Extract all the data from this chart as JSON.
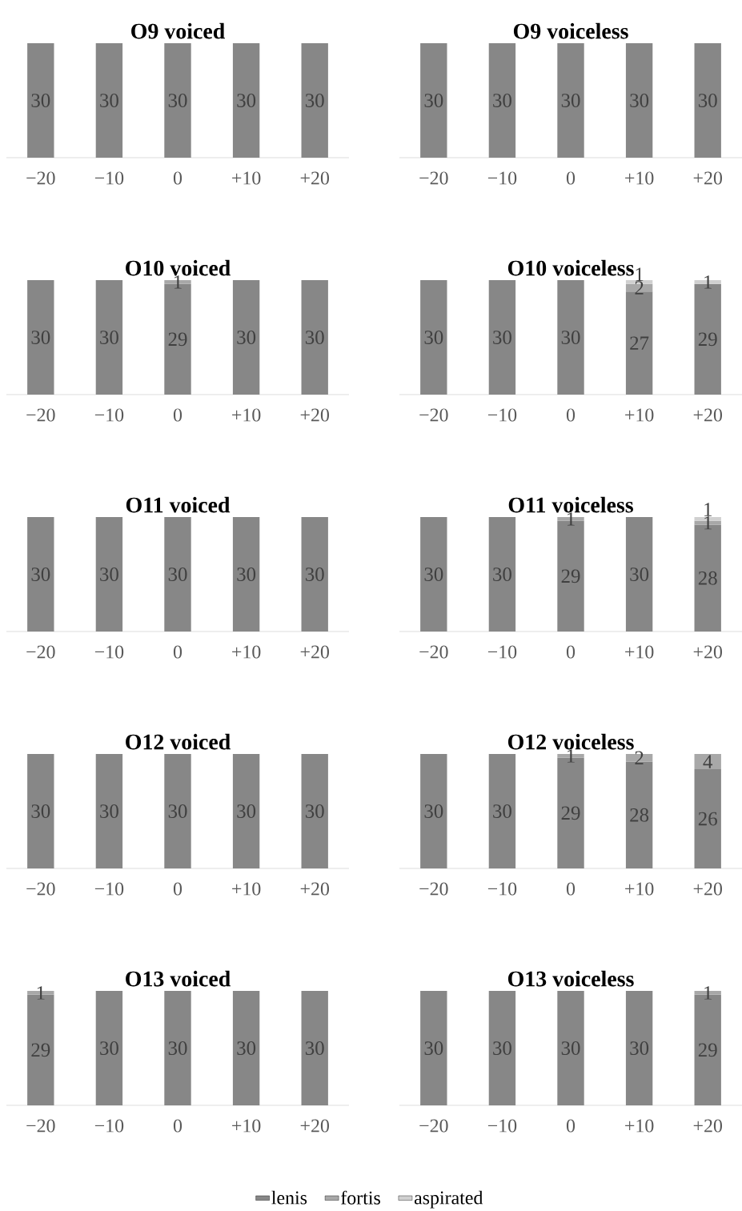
{
  "chart_data": [
    {
      "type": "bar",
      "title": "O9 voiced",
      "categories": [
        "−20",
        "−10",
        "0",
        "+10",
        "+20"
      ],
      "stacked": true,
      "data_labels": true,
      "ylim": [
        0,
        30
      ],
      "series": [
        {
          "color": "#878787",
          "values": [
            30,
            30,
            30,
            30,
            30
          ]
        },
        {
          "color": "#a8a8a8",
          "values": [
            null,
            null,
            null,
            null,
            null
          ]
        },
        {
          "color": "#d0d0d0",
          "values": [
            null,
            null,
            null,
            null,
            null
          ]
        }
      ]
    },
    {
      "type": "bar",
      "title": "O9 voiceless",
      "categories": [
        "−20",
        "−10",
        "0",
        "+10",
        "+20"
      ],
      "stacked": true,
      "data_labels": true,
      "ylim": [
        0,
        30
      ],
      "series": [
        {
          "color": "#878787",
          "values": [
            30,
            30,
            30,
            30,
            30
          ]
        },
        {
          "color": "#a8a8a8",
          "values": [
            null,
            null,
            null,
            null,
            null
          ]
        },
        {
          "color": "#d0d0d0",
          "values": [
            null,
            null,
            null,
            null,
            null
          ]
        }
      ]
    },
    {
      "type": "bar",
      "title": "O10 voiced",
      "categories": [
        "−20",
        "−10",
        "0",
        "+10",
        "+20"
      ],
      "stacked": true,
      "data_labels": true,
      "ylim": [
        0,
        30
      ],
      "series": [
        {
          "color": "#878787",
          "values": [
            30,
            30,
            29,
            30,
            30
          ]
        },
        {
          "color": "#a8a8a8",
          "values": [
            null,
            null,
            1,
            null,
            null
          ]
        },
        {
          "color": "#d0d0d0",
          "values": [
            null,
            null,
            null,
            null,
            null
          ]
        }
      ]
    },
    {
      "type": "bar",
      "title": "O10 voiceless",
      "categories": [
        "−20",
        "−10",
        "0",
        "+10",
        "+20"
      ],
      "stacked": true,
      "data_labels": true,
      "ylim": [
        0,
        30
      ],
      "series": [
        {
          "color": "#878787",
          "values": [
            30,
            30,
            30,
            27,
            29
          ]
        },
        {
          "color": "#a8a8a8",
          "values": [
            null,
            null,
            null,
            2,
            null
          ]
        },
        {
          "color": "#d0d0d0",
          "values": [
            null,
            null,
            null,
            1,
            1
          ]
        }
      ]
    },
    {
      "type": "bar",
      "title": "O11 voiced",
      "categories": [
        "−20",
        "−10",
        "0",
        "+10",
        "+20"
      ],
      "stacked": true,
      "data_labels": true,
      "ylim": [
        0,
        30
      ],
      "series": [
        {
          "color": "#878787",
          "values": [
            30,
            30,
            30,
            30,
            30
          ]
        },
        {
          "color": "#a8a8a8",
          "values": [
            null,
            null,
            null,
            null,
            null
          ]
        },
        {
          "color": "#d0d0d0",
          "values": [
            null,
            null,
            null,
            null,
            null
          ]
        }
      ]
    },
    {
      "type": "bar",
      "title": "O11 voiceless",
      "categories": [
        "−20",
        "−10",
        "0",
        "+10",
        "+20"
      ],
      "stacked": true,
      "data_labels": true,
      "ylim": [
        0,
        30
      ],
      "series": [
        {
          "color": "#878787",
          "values": [
            30,
            30,
            29,
            30,
            28
          ]
        },
        {
          "color": "#a8a8a8",
          "values": [
            null,
            null,
            1,
            null,
            1
          ]
        },
        {
          "color": "#d0d0d0",
          "values": [
            null,
            null,
            null,
            null,
            1
          ]
        }
      ]
    },
    {
      "type": "bar",
      "title": "O12 voiced",
      "categories": [
        "−20",
        "−10",
        "0",
        "+10",
        "+20"
      ],
      "stacked": true,
      "data_labels": true,
      "ylim": [
        0,
        30
      ],
      "series": [
        {
          "color": "#878787",
          "values": [
            30,
            30,
            30,
            30,
            30
          ]
        },
        {
          "color": "#a8a8a8",
          "values": [
            null,
            null,
            null,
            null,
            null
          ]
        },
        {
          "color": "#d0d0d0",
          "values": [
            null,
            null,
            null,
            null,
            null
          ]
        }
      ]
    },
    {
      "type": "bar",
      "title": "O12 voiceless",
      "categories": [
        "−20",
        "−10",
        "0",
        "+10",
        "+20"
      ],
      "stacked": true,
      "data_labels": true,
      "ylim": [
        0,
        30
      ],
      "series": [
        {
          "color": "#878787",
          "values": [
            30,
            30,
            29,
            28,
            26
          ]
        },
        {
          "color": "#a8a8a8",
          "values": [
            null,
            null,
            1,
            2,
            4
          ]
        },
        {
          "color": "#d0d0d0",
          "values": [
            null,
            null,
            null,
            null,
            null
          ]
        }
      ]
    },
    {
      "type": "bar",
      "title": "O13 voiced",
      "categories": [
        "−20",
        "−10",
        "0",
        "+10",
        "+20"
      ],
      "stacked": true,
      "data_labels": true,
      "ylim": [
        0,
        30
      ],
      "series": [
        {
          "color": "#878787",
          "values": [
            29,
            30,
            30,
            30,
            30
          ]
        },
        {
          "color": "#a8a8a8",
          "values": [
            1,
            null,
            null,
            null,
            null
          ]
        },
        {
          "color": "#d0d0d0",
          "values": [
            null,
            null,
            null,
            null,
            null
          ]
        }
      ]
    },
    {
      "type": "bar",
      "title": "O13 voiceless",
      "categories": [
        "−20",
        "−10",
        "0",
        "+10",
        "+20"
      ],
      "stacked": true,
      "data_labels": true,
      "ylim": [
        0,
        30
      ],
      "legend": "bottom",
      "series": [
        {
          "name": "lenis",
          "color": "#878787",
          "values": [
            30,
            30,
            30,
            30,
            29
          ]
        },
        {
          "name": "fortis",
          "color": "#a8a8a8",
          "values": [
            null,
            null,
            null,
            null,
            1
          ]
        },
        {
          "name": "aspirated",
          "color": "#d0d0d0",
          "values": [
            null,
            null,
            null,
            null,
            null
          ]
        }
      ]
    }
  ]
}
